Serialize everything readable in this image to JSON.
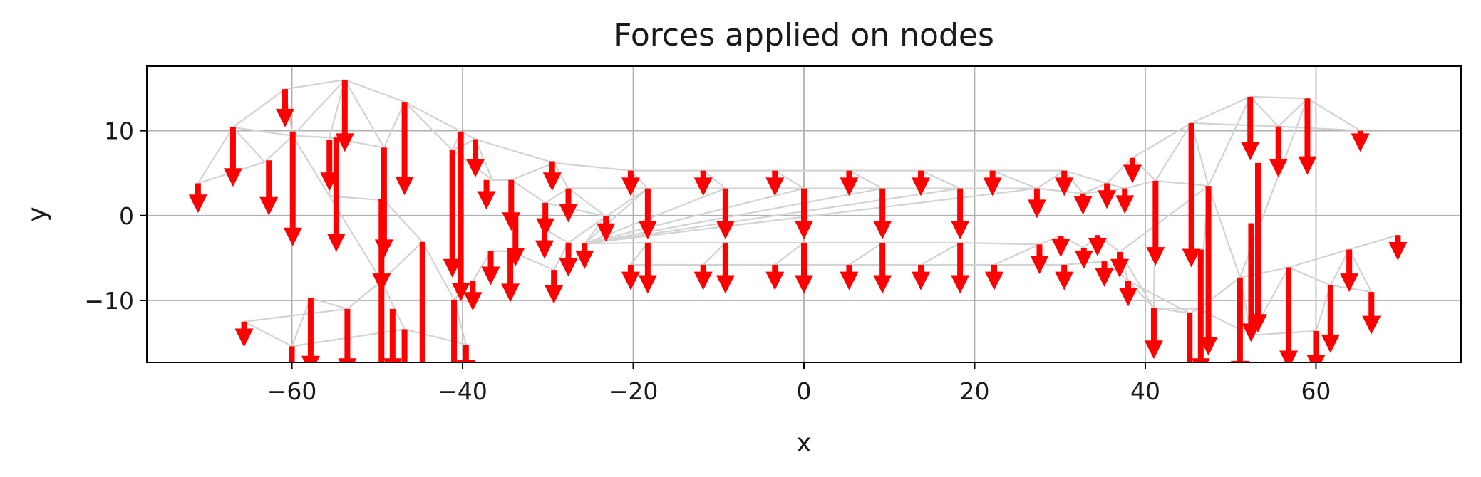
{
  "chart_data": {
    "type": "quiver",
    "title": "Forces applied on nodes",
    "xlabel": "x",
    "ylabel": "y",
    "xlim": [
      -77,
      77
    ],
    "ylim": [
      -17.3,
      17.6
    ],
    "xticks": [
      "−60",
      "−40",
      "−20",
      "0",
      "20",
      "40",
      "60"
    ],
    "xtick_values": [
      -60,
      -40,
      -20,
      0,
      20,
      40,
      60
    ],
    "yticks": [
      "10",
      "0",
      "−10"
    ],
    "ytick_values": [
      10,
      0,
      -10
    ],
    "grid": true,
    "colors": {
      "arrow": "#ff0000",
      "mesh": "#d3d3d3",
      "grid": "#b0b0b0",
      "axes": "#000000"
    },
    "nodes": [
      [
        -66.9,
        10.4
      ],
      [
        -60.8,
        14.9
      ],
      [
        -53.8,
        16.0
      ],
      [
        -46.8,
        13.4
      ],
      [
        -40.2,
        9.9
      ],
      [
        -71,
        3.8
      ],
      [
        -63.2,
        6.3
      ],
      [
        -55.6,
        9.2
      ],
      [
        -49.2,
        8.0
      ],
      [
        -41.2,
        7.7
      ],
      [
        -38.5,
        9.0
      ],
      [
        -36.5,
        4.2
      ],
      [
        -34.3,
        4.2
      ],
      [
        -30.3,
        1.5
      ],
      [
        -29.3,
        6.2
      ],
      [
        -27.6,
        3.2
      ],
      [
        -23.2,
        -0.1
      ],
      [
        -20.3,
        5.3
      ],
      [
        -18.3,
        3.2
      ],
      [
        -11.8,
        5.3
      ],
      [
        -9.2,
        3.2
      ],
      [
        -3.4,
        5.3
      ],
      [
        0,
        3.2
      ],
      [
        5.3,
        5.3
      ],
      [
        9.2,
        3.2
      ],
      [
        13.7,
        5.3
      ],
      [
        18.3,
        3.2
      ],
      [
        22.1,
        5.3
      ],
      [
        27.3,
        3.2
      ],
      [
        30.5,
        5.3
      ],
      [
        32.7,
        2.6
      ],
      [
        35.5,
        3.8
      ],
      [
        37.6,
        3.2
      ],
      [
        38.5,
        6.8
      ],
      [
        41.2,
        4.1
      ],
      [
        45.4,
        10.9
      ],
      [
        52.3,
        14.0
      ],
      [
        55.6,
        10.5
      ],
      [
        59.0,
        13.8
      ],
      [
        65.2,
        10.0
      ],
      [
        69.6,
        -2.3
      ],
      [
        63.9,
        -4.0
      ],
      [
        66.5,
        -9.0
      ],
      [
        61.7,
        -8.2
      ],
      [
        60.0,
        -13.6
      ],
      [
        56.8,
        -6.1
      ],
      [
        52.4,
        -14.1
      ],
      [
        51.1,
        -7.3
      ],
      [
        47.4,
        3.5
      ],
      [
        46.3,
        -11.0
      ],
      [
        45.2,
        -11.5
      ],
      [
        41.0,
        -10.9
      ],
      [
        38.0,
        -7.7
      ],
      [
        37.0,
        -4.3
      ],
      [
        35.2,
        -5.4
      ],
      [
        34.4,
        -2.3
      ],
      [
        32.8,
        -3.8
      ],
      [
        30.5,
        -5.8
      ],
      [
        30.1,
        -2.4
      ],
      [
        27.6,
        -3.4
      ],
      [
        22.3,
        -5.8
      ],
      [
        18.3,
        -3.2
      ],
      [
        13.7,
        -5.8
      ],
      [
        9.2,
        -3.2
      ],
      [
        5.3,
        -5.8
      ],
      [
        0,
        -3.2
      ],
      [
        -3.4,
        -5.8
      ],
      [
        -9.2,
        -3.2
      ],
      [
        -11.8,
        -5.8
      ],
      [
        -18.3,
        -3.2
      ],
      [
        -20.3,
        -5.8
      ],
      [
        -25.7,
        -3.3
      ],
      [
        -27.6,
        -3.2
      ],
      [
        -29.3,
        -6.4
      ],
      [
        -30.4,
        -1.6
      ],
      [
        -34.4,
        -4.2
      ],
      [
        -36.7,
        -4.2
      ],
      [
        -38.8,
        -7.7
      ],
      [
        -41.0,
        -9.9
      ],
      [
        -44.7,
        -3.1
      ],
      [
        -49.5,
        -7.7
      ],
      [
        -46.8,
        -13.4
      ],
      [
        -53.5,
        -11.0
      ],
      [
        -57.8,
        -9.7
      ],
      [
        -60.0,
        -15.4
      ],
      [
        -65.6,
        -12.5
      ],
      [
        -59.9,
        9.4
      ],
      [
        -55.6,
        2.3
      ],
      [
        -49.2,
        1.8
      ],
      [
        -39.6,
        -15.2
      ]
    ],
    "edges": [
      [
        0,
        1
      ],
      [
        1,
        2
      ],
      [
        2,
        3
      ],
      [
        3,
        4
      ],
      [
        0,
        5
      ],
      [
        0,
        6
      ],
      [
        5,
        6
      ],
      [
        0,
        86
      ],
      [
        1,
        86
      ],
      [
        2,
        86
      ],
      [
        6,
        86
      ],
      [
        86,
        7
      ],
      [
        2,
        7
      ],
      [
        7,
        8
      ],
      [
        2,
        8
      ],
      [
        3,
        8
      ],
      [
        3,
        9
      ],
      [
        4,
        9
      ],
      [
        4,
        10
      ],
      [
        9,
        10
      ],
      [
        10,
        11
      ],
      [
        11,
        12
      ],
      [
        12,
        14
      ],
      [
        10,
        14
      ],
      [
        14,
        17
      ],
      [
        17,
        19
      ],
      [
        19,
        21
      ],
      [
        21,
        23
      ],
      [
        23,
        25
      ],
      [
        25,
        27
      ],
      [
        27,
        29
      ],
      [
        29,
        31
      ],
      [
        31,
        33
      ],
      [
        33,
        35
      ],
      [
        35,
        36
      ],
      [
        36,
        37
      ],
      [
        37,
        38
      ],
      [
        36,
        38
      ],
      [
        38,
        39
      ],
      [
        37,
        39
      ],
      [
        35,
        37
      ],
      [
        34,
        35
      ],
      [
        33,
        34
      ],
      [
        34,
        48
      ],
      [
        48,
        35
      ],
      [
        12,
        13
      ],
      [
        13,
        15
      ],
      [
        14,
        15
      ],
      [
        15,
        18
      ],
      [
        17,
        18
      ],
      [
        18,
        20
      ],
      [
        19,
        20
      ],
      [
        20,
        22
      ],
      [
        21,
        22
      ],
      [
        22,
        24
      ],
      [
        23,
        24
      ],
      [
        24,
        26
      ],
      [
        25,
        26
      ],
      [
        26,
        28
      ],
      [
        27,
        28
      ],
      [
        28,
        30
      ],
      [
        29,
        30
      ],
      [
        30,
        32
      ],
      [
        31,
        32
      ],
      [
        32,
        34
      ],
      [
        30,
        31
      ],
      [
        28,
        29
      ],
      [
        15,
        16
      ],
      [
        16,
        18
      ],
      [
        13,
        16
      ],
      [
        16,
        72
      ],
      [
        16,
        71
      ],
      [
        18,
        71
      ],
      [
        20,
        71
      ],
      [
        22,
        71
      ],
      [
        24,
        71
      ],
      [
        26,
        71
      ],
      [
        28,
        71
      ],
      [
        71,
        69
      ],
      [
        69,
        67
      ],
      [
        67,
        65
      ],
      [
        65,
        63
      ],
      [
        63,
        61
      ],
      [
        61,
        59
      ],
      [
        59,
        58
      ],
      [
        58,
        56
      ],
      [
        56,
        55
      ],
      [
        55,
        53
      ],
      [
        53,
        52
      ],
      [
        52,
        51
      ],
      [
        69,
        70
      ],
      [
        70,
        68
      ],
      [
        68,
        66
      ],
      [
        66,
        64
      ],
      [
        64,
        62
      ],
      [
        62,
        60
      ],
      [
        60,
        57
      ],
      [
        57,
        54
      ],
      [
        54,
        52
      ],
      [
        67,
        68
      ],
      [
        65,
        66
      ],
      [
        63,
        64
      ],
      [
        61,
        62
      ],
      [
        59,
        60
      ],
      [
        72,
        74
      ],
      [
        74,
        13
      ],
      [
        72,
        73
      ],
      [
        73,
        75
      ],
      [
        75,
        76
      ],
      [
        76,
        77
      ],
      [
        77,
        78
      ],
      [
        78,
        79
      ],
      [
        79,
        80
      ],
      [
        80,
        81
      ],
      [
        81,
        89
      ],
      [
        89,
        78
      ],
      [
        80,
        82
      ],
      [
        82,
        83
      ],
      [
        83,
        84
      ],
      [
        84,
        85
      ],
      [
        85,
        82
      ],
      [
        84,
        81
      ],
      [
        87,
        88
      ],
      [
        86,
        87
      ],
      [
        7,
        87
      ],
      [
        8,
        88
      ],
      [
        88,
        79
      ],
      [
        87,
        80
      ],
      [
        9,
        11
      ],
      [
        40,
        41
      ],
      [
        41,
        42
      ],
      [
        42,
        43
      ],
      [
        43,
        44
      ],
      [
        44,
        46
      ],
      [
        45,
        46
      ],
      [
        45,
        47
      ],
      [
        46,
        47
      ],
      [
        40,
        45
      ],
      [
        41,
        43
      ],
      [
        43,
        45
      ],
      [
        47,
        49
      ],
      [
        47,
        48
      ],
      [
        48,
        49
      ],
      [
        49,
        50
      ],
      [
        50,
        51
      ],
      [
        51,
        53
      ],
      [
        50,
        52
      ],
      [
        48,
        53
      ],
      [
        34,
        51
      ],
      [
        49,
        51
      ],
      [
        46,
        49
      ],
      [
        47,
        38
      ],
      [
        48,
        36
      ]
    ],
    "arrows": [
      [
        -71,
        3.8,
        3.5
      ],
      [
        -66.9,
        10.4,
        7.0
      ],
      [
        -62.7,
        6.5,
        6.5
      ],
      [
        -60.8,
        14.9,
        4.5
      ],
      [
        -59.9,
        9.9,
        13.5
      ],
      [
        -55.6,
        8.9,
        6.0
      ],
      [
        -54.8,
        9.2,
        13.5
      ],
      [
        -53.8,
        16.0,
        8.5
      ],
      [
        -49.2,
        8.0,
        13.0
      ],
      [
        -49.5,
        2.0,
        11.0
      ],
      [
        -46.8,
        13.4,
        11.0
      ],
      [
        -41.2,
        7.7,
        15.0
      ],
      [
        -40.2,
        9.9,
        20.0
      ],
      [
        -38.5,
        9.0,
        4.5
      ],
      [
        -37.2,
        4.2,
        3.5
      ],
      [
        -34.3,
        4.2,
        6.0
      ],
      [
        -33.8,
        0.0,
        6.0
      ],
      [
        -29.5,
        6.4,
        3.5
      ],
      [
        -30.3,
        1.5,
        4.0
      ],
      [
        -27.6,
        3.2,
        4.0
      ],
      [
        -23.2,
        -0.1,
        3.0
      ],
      [
        -20.3,
        5.3,
        3.0
      ],
      [
        -18.3,
        3.2,
        6.0
      ],
      [
        -11.8,
        5.3,
        3.0
      ],
      [
        -9.2,
        3.2,
        6.0
      ],
      [
        -3.4,
        5.3,
        3.0
      ],
      [
        0,
        3.2,
        6.0
      ],
      [
        5.3,
        5.3,
        3.0
      ],
      [
        9.2,
        3.2,
        6.0
      ],
      [
        13.7,
        5.3,
        3.0
      ],
      [
        18.3,
        3.2,
        6.0
      ],
      [
        22.1,
        5.3,
        3.0
      ],
      [
        27.3,
        3.2,
        3.5
      ],
      [
        30.5,
        5.3,
        3.0
      ],
      [
        32.7,
        2.6,
        2.5
      ],
      [
        35.5,
        3.8,
        3.0
      ],
      [
        37.6,
        3.2,
        3.0
      ],
      [
        38.5,
        6.8,
        3.0
      ],
      [
        41.2,
        4.1,
        10.0
      ],
      [
        45.4,
        10.9,
        17.0
      ],
      [
        52.3,
        14.0,
        7.5
      ],
      [
        55.6,
        10.5,
        6.0
      ],
      [
        59.0,
        13.8,
        9.0
      ],
      [
        65.2,
        10.0,
        2.5
      ],
      [
        69.6,
        -2.3,
        3.0
      ],
      [
        63.9,
        -4.0,
        5.0
      ],
      [
        66.5,
        -9.0,
        5.0
      ],
      [
        61.7,
        -8.2,
        8.0
      ],
      [
        60.0,
        -13.6,
        5.0
      ],
      [
        56.8,
        -6.1,
        12.0
      ],
      [
        53.2,
        6.2,
        20.0
      ],
      [
        52.4,
        -0.9,
        14.0
      ],
      [
        51.1,
        -7.3,
        12.0
      ],
      [
        47.4,
        3.5,
        20.0
      ],
      [
        46.5,
        -4.0,
        15.0
      ],
      [
        45.2,
        -11.5,
        8.0
      ],
      [
        41.0,
        -10.9,
        6.0
      ],
      [
        38.0,
        -7.7,
        3.0
      ],
      [
        37.0,
        -4.3,
        3.0
      ],
      [
        35.2,
        -5.4,
        3.0
      ],
      [
        34.4,
        -2.3,
        2.5
      ],
      [
        32.8,
        -3.8,
        2.5
      ],
      [
        30.5,
        -5.8,
        3.0
      ],
      [
        30.1,
        -2.4,
        2.5
      ],
      [
        27.6,
        -3.4,
        3.5
      ],
      [
        22.3,
        -5.8,
        3.0
      ],
      [
        18.3,
        -3.2,
        6.0
      ],
      [
        13.7,
        -5.8,
        3.0
      ],
      [
        9.2,
        -3.2,
        6.0
      ],
      [
        5.3,
        -5.8,
        3.0
      ],
      [
        0,
        -3.2,
        6.0
      ],
      [
        -3.4,
        -5.8,
        3.0
      ],
      [
        -9.2,
        -3.2,
        6.0
      ],
      [
        -11.8,
        -5.8,
        3.0
      ],
      [
        -18.3,
        -3.2,
        6.0
      ],
      [
        -20.3,
        -5.8,
        3.0
      ],
      [
        -25.7,
        -3.3,
        3.0
      ],
      [
        -27.6,
        -3.2,
        4.0
      ],
      [
        -29.3,
        -6.4,
        4.0
      ],
      [
        -30.4,
        -1.6,
        3.5
      ],
      [
        -34.4,
        -4.2,
        6.0
      ],
      [
        -36.7,
        -4.2,
        4.0
      ],
      [
        -38.8,
        -7.7,
        3.5
      ],
      [
        -41.0,
        -9.9,
        10.0
      ],
      [
        -44.7,
        -3.1,
        17.0
      ],
      [
        -49.5,
        -7.7,
        12.0
      ],
      [
        -46.8,
        -13.4,
        6.0
      ],
      [
        -53.5,
        -11.0,
        8.0
      ],
      [
        -57.8,
        -9.7,
        9.0
      ],
      [
        -60.0,
        -15.4,
        4.0
      ],
      [
        -65.6,
        -12.5,
        3.0
      ],
      [
        -48.2,
        -11.0,
        8.0
      ],
      [
        -39.6,
        -15.2,
        4.0
      ]
    ]
  }
}
